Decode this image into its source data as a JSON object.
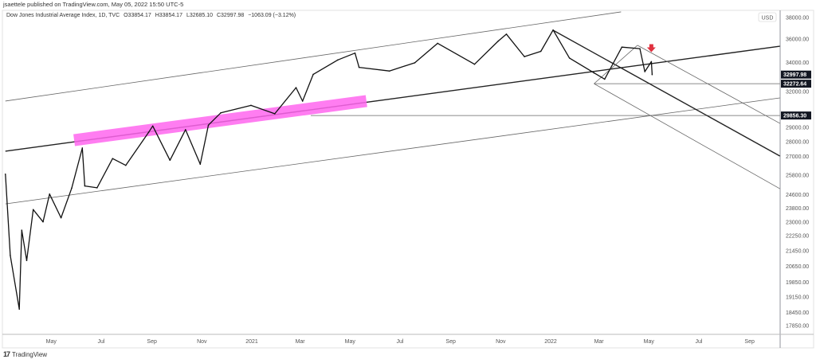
{
  "header": {
    "published": "jsaettele published on TradingView.com, May 05, 2022 15:50 UTC-5",
    "symbol": "Dow Jones Industrial Average Index, 1D, TVC",
    "open": "O33854.17",
    "high": "H33854.17",
    "low": "L32685.10",
    "close": "C32997.98",
    "change": "−1063.09 (−3.12%)"
  },
  "footer": {
    "logo_mark": "17",
    "brand": "TradingView"
  },
  "chart_data": {
    "type": "line",
    "title": "Dow Jones Industrial Average Index, 1D, TVC",
    "currency": "USD",
    "y_scale": "log",
    "ylim": [
      17500,
      38500
    ],
    "xlim": [
      "2020-03-06",
      "2022-10-08"
    ],
    "grid": false,
    "y_ticks": [
      "38000.00",
      "36000.00",
      "34000.00",
      "32000.00",
      "29000.00",
      "28000.00",
      "27000.00",
      "25800.00",
      "24600.00",
      "23800.00",
      "23000.00",
      "22250.00",
      "21450.00",
      "20650.00",
      "19850.00",
      "19150.00",
      "18450.00",
      "17850.00"
    ],
    "x_ticks": [
      {
        "label": "May",
        "date": "2020-05-01"
      },
      {
        "label": "Jul",
        "date": "2020-07-01"
      },
      {
        "label": "Sep",
        "date": "2020-09-01"
      },
      {
        "label": "Nov",
        "date": "2020-11-01"
      },
      {
        "label": "2021",
        "date": "2021-01-01"
      },
      {
        "label": "Mar",
        "date": "2021-03-01"
      },
      {
        "label": "May",
        "date": "2021-05-01"
      },
      {
        "label": "Jul",
        "date": "2021-07-01"
      },
      {
        "label": "Sep",
        "date": "2021-09-01"
      },
      {
        "label": "Nov",
        "date": "2021-11-01"
      },
      {
        "label": "2022",
        "date": "2022-01-01"
      },
      {
        "label": "Mar",
        "date": "2022-03-01"
      },
      {
        "label": "May",
        "date": "2022-05-01"
      },
      {
        "label": "Jul",
        "date": "2022-07-01"
      },
      {
        "label": "Sep",
        "date": "2022-09-01"
      }
    ],
    "price_labels": [
      {
        "label": "32997.98",
        "value": 32997.98
      },
      {
        "label": "32272.64",
        "value": 32272.64
      },
      {
        "label": "29856.30",
        "value": 29856.3
      }
    ],
    "series": [
      {
        "x": [
          "2020-03-06",
          "2020-03-12",
          "2020-03-23",
          "2020-03-26",
          "2020-04-01",
          "2020-04-09",
          "2020-04-21",
          "2020-04-29",
          "2020-05-13",
          "2020-05-26",
          "2020-06-08",
          "2020-06-11",
          "2020-06-26",
          "2020-07-15",
          "2020-07-31",
          "2020-08-28",
          "2020-09-02",
          "2020-09-23",
          "2020-10-12",
          "2020-10-30",
          "2020-11-09",
          "2020-11-24",
          "2020-12-31",
          "2021-01-29",
          "2021-02-24",
          "2021-03-04",
          "2021-03-17",
          "2021-04-16",
          "2021-05-07",
          "2021-05-12",
          "2021-06-18",
          "2021-07-19",
          "2021-08-16",
          "2021-09-30",
          "2021-10-29",
          "2021-11-08",
          "2021-11-30",
          "2021-12-20",
          "2022-01-04",
          "2022-01-24",
          "2022-02-23",
          "2022-03-08",
          "2022-03-29",
          "2022-04-20",
          "2022-04-26",
          "2022-05-04",
          "2022-05-05"
        ],
        "y": [
          25864,
          21200,
          18592,
          22552,
          20943,
          23719,
          23018,
          24634,
          23247,
          24995,
          27572,
          25128,
          25016,
          26870,
          26428,
          28654,
          29100,
          26763,
          28837,
          26502,
          29158,
          30046,
          30606,
          29983,
          31962,
          30924,
          33015,
          34200,
          34778,
          33587,
          33290,
          33962,
          35625,
          33844,
          35820,
          36432,
          34484,
          34932,
          36800,
          34365,
          33131,
          32632,
          35294,
          35160,
          33240,
          34061,
          32998
        ]
      }
    ],
    "drawings": [
      {
        "kind": "trendline",
        "style": "thin",
        "from": [
          "2020-03-06",
          30930
        ],
        "to": [
          "2022-03-28",
          38470
        ]
      },
      {
        "kind": "trendline",
        "style": "thick",
        "from": [
          "2020-03-06",
          27360
        ],
        "to": [
          "2022-10-08",
          35370
        ]
      },
      {
        "kind": "trendline",
        "style": "thin",
        "from": [
          "2020-03-06",
          24050
        ],
        "to": [
          "2022-10-08",
          31170
        ]
      },
      {
        "kind": "band",
        "color": "#ff66ee",
        "from": [
          "2020-05-29",
          28110
        ],
        "to": [
          "2021-05-21",
          30930
        ]
      },
      {
        "kind": "horizontal",
        "style": "thin",
        "from": [
          "2021-03-14",
          29856.3
        ],
        "to": [
          "2022-10-08",
          29856.3
        ]
      },
      {
        "kind": "horizontal",
        "style": "thin",
        "from": [
          "2022-02-23",
          32272.64
        ],
        "to": [
          "2022-10-08",
          32272.64
        ]
      },
      {
        "kind": "trendline",
        "style": "thick",
        "from": [
          "2022-01-04",
          36780
        ],
        "to": [
          "2022-10-08",
          27040
        ]
      },
      {
        "kind": "trendline",
        "style": "thin",
        "from": [
          "2022-02-23",
          32272.64
        ],
        "to": [
          "2022-04-17",
          35450
        ]
      },
      {
        "kind": "trendline",
        "style": "thin",
        "from": [
          "2022-04-17",
          35450
        ],
        "to": [
          "2022-10-08",
          29290
        ]
      },
      {
        "kind": "trendline",
        "style": "thin",
        "from": [
          "2022-02-23",
          32272.64
        ],
        "to": [
          "2022-10-08",
          24960
        ]
      }
    ],
    "arrow": {
      "date": "2022-05-04",
      "price": 35000,
      "direction": "down",
      "color": "#e0313f"
    }
  }
}
